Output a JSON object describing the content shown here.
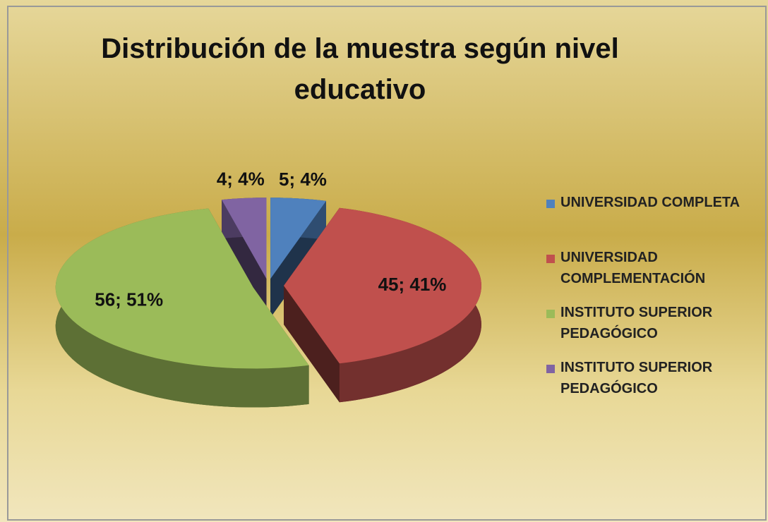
{
  "chart_data": {
    "type": "pie",
    "title": "Distribución de la muestra según nivel educativo",
    "categories": [
      "UNIVERSIDAD COMPLETA",
      "UNIVERSIDAD COMPLEMENTACIÓN",
      "INSTITUTO SUPERIOR PEDAGÓGICO",
      "INSTITUTO SUPERIOR PEDAGÓGICO"
    ],
    "values": [
      5,
      45,
      56,
      4
    ],
    "value_labels": [
      "5; 4%",
      "45; 41%",
      "56; 51%",
      "4; 4%"
    ],
    "colors": [
      "#4f81bd",
      "#c0504d",
      "#9bbb59",
      "#8064a2"
    ],
    "legend": "right"
  }
}
